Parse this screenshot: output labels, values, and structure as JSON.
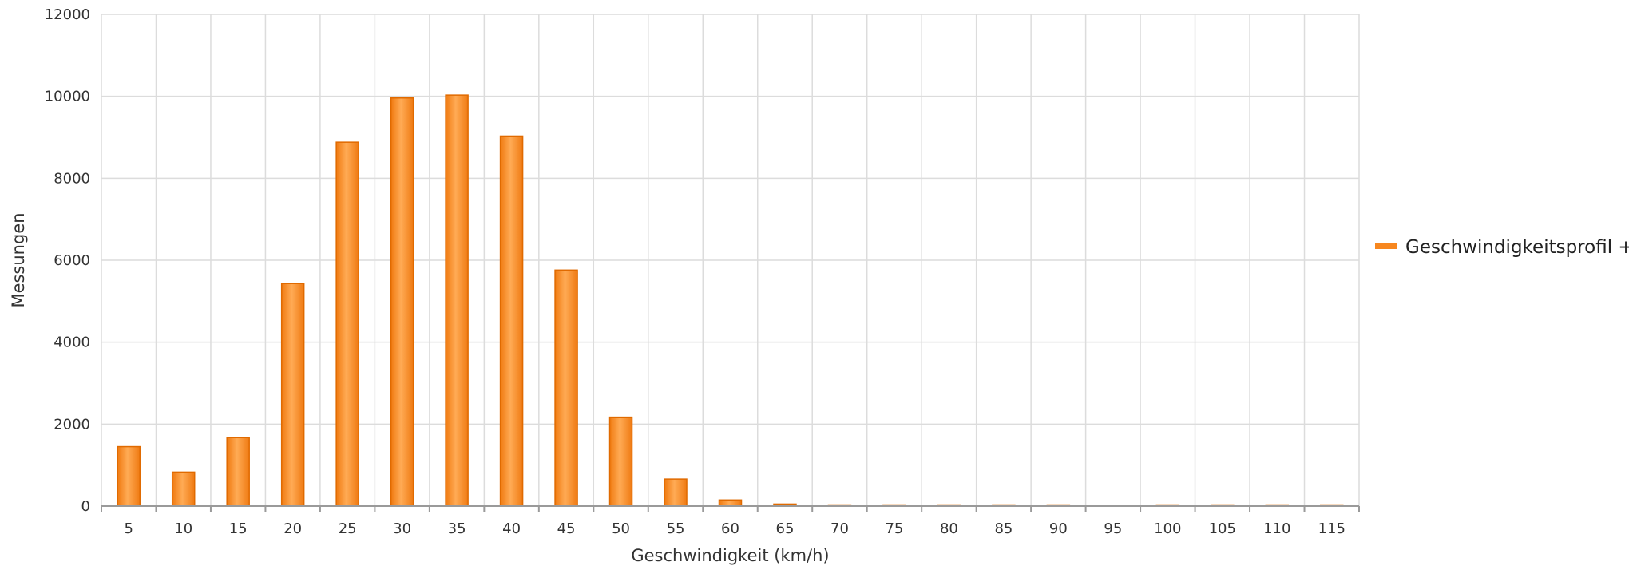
{
  "chart_data": {
    "type": "bar",
    "xlabel": "Geschwindigkeit (km/h)",
    "ylabel": "Messungen",
    "ylim": [
      0,
      12000
    ],
    "yticks": [
      "0",
      "2000",
      "4000",
      "6000",
      "8000",
      "10000",
      "12000"
    ],
    "categories": [
      "5",
      "10",
      "15",
      "20",
      "25",
      "30",
      "35",
      "40",
      "45",
      "50",
      "55",
      "60",
      "65",
      "70",
      "75",
      "80",
      "85",
      "90",
      "95",
      "100",
      "105",
      "110",
      "115"
    ],
    "series": [
      {
        "name": "Geschwindigkeitsprofil +",
        "color": "#f7871f",
        "values": [
          1450,
          830,
          1670,
          5430,
          8880,
          9960,
          10030,
          9030,
          5760,
          2170,
          660,
          150,
          50,
          15,
          10,
          8,
          5,
          5,
          0,
          5,
          5,
          5,
          5
        ]
      }
    ],
    "grid": true,
    "legend_position": "right"
  }
}
